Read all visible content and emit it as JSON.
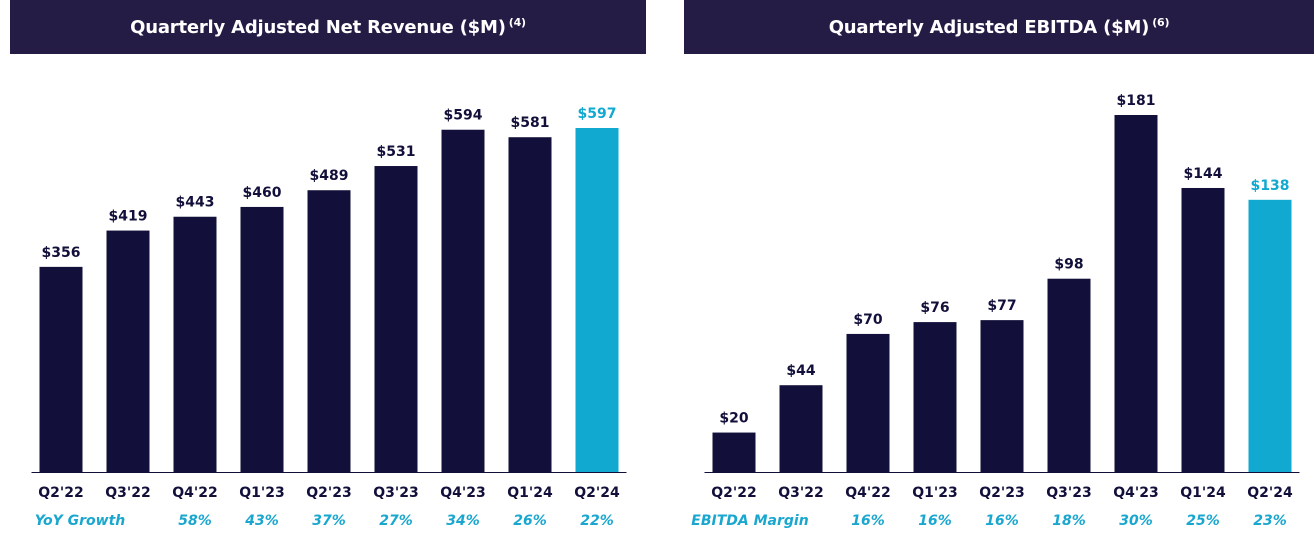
{
  "colors": {
    "bar": "#12103a",
    "highlight": "#12a9d1",
    "header": "#241c45",
    "axis": "#12103a"
  },
  "chart_data": [
    {
      "type": "bar",
      "title": "Quarterly Adjusted Net Revenue ($M)",
      "title_note": "(4)",
      "categories": [
        "Q2'22",
        "Q3'22",
        "Q4'22",
        "Q1'23",
        "Q2'23",
        "Q3'23",
        "Q4'23",
        "Q1'24",
        "Q2'24"
      ],
      "values": [
        356,
        419,
        443,
        460,
        489,
        531,
        594,
        581,
        597
      ],
      "value_labels": [
        "$356",
        "$419",
        "$443",
        "$460",
        "$489",
        "$531",
        "$594",
        "$581",
        "$597"
      ],
      "highlight_index": 8,
      "ylim": [
        0,
        700
      ],
      "grid": false,
      "metric_label": "YoY Growth",
      "metric_values": [
        "",
        "",
        "58%",
        "43%",
        "37%",
        "27%",
        "34%",
        "26%",
        "22%"
      ]
    },
    {
      "type": "bar",
      "title": "Quarterly Adjusted EBITDA ($M)",
      "title_note": "(6)",
      "categories": [
        "Q2'22",
        "Q3'22",
        "Q4'22",
        "Q1'23",
        "Q2'23",
        "Q3'23",
        "Q4'23",
        "Q1'24",
        "Q2'24"
      ],
      "values": [
        20,
        44,
        70,
        76,
        77,
        98,
        181,
        144,
        138
      ],
      "value_labels": [
        "$20",
        "$44",
        "$70",
        "$76",
        "$77",
        "$98",
        "$181",
        "$144",
        "$138"
      ],
      "highlight_index": 8,
      "ylim": [
        0,
        210
      ],
      "grid": false,
      "metric_label": "EBITDA Margin",
      "metric_values": [
        "",
        "",
        "16%",
        "16%",
        "16%",
        "18%",
        "30%",
        "25%",
        "23%"
      ]
    }
  ]
}
